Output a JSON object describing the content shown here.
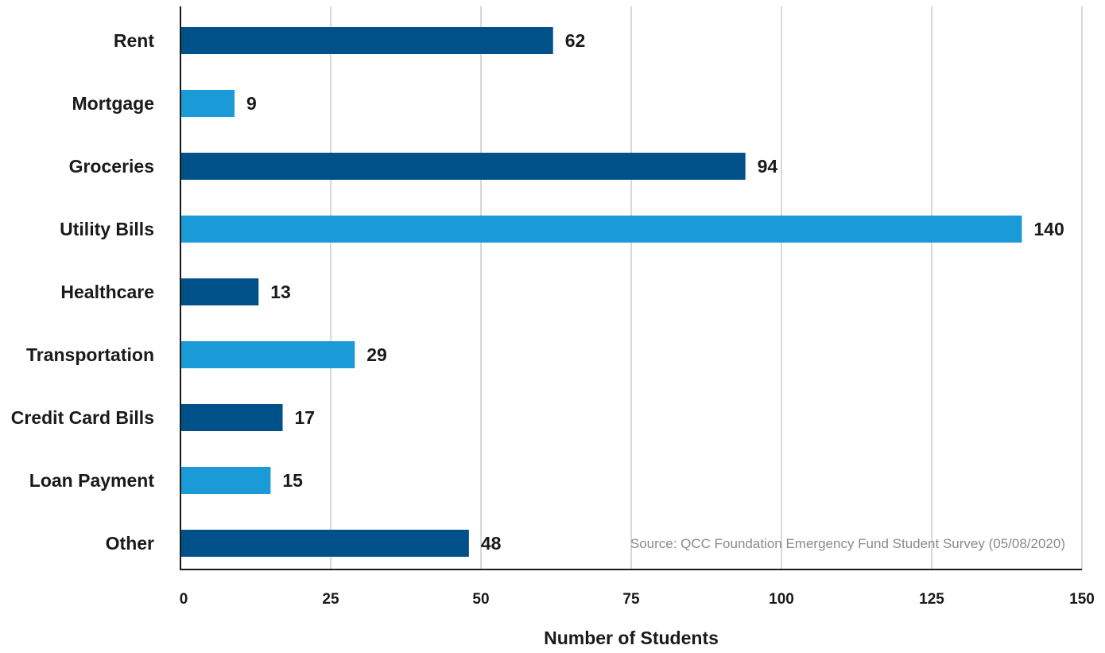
{
  "chart_data": {
    "type": "bar",
    "orientation": "horizontal",
    "categories": [
      "Rent",
      "Mortgage",
      "Groceries",
      "Utility Bills",
      "Healthcare",
      "Transportation",
      "Credit Card Bills",
      "Loan Payment",
      "Other"
    ],
    "values": [
      62,
      9,
      94,
      140,
      13,
      29,
      17,
      15,
      48
    ],
    "xlabel": "Number of Students",
    "ylabel": "",
    "xlim": [
      0,
      150
    ],
    "xticks": [
      0,
      25,
      50,
      75,
      100,
      125,
      150
    ],
    "grid": "vertical",
    "annotation": "Source: QCC Foundation Emergency Fund Student Survey (05/08/2020)",
    "bar_colors": [
      "#005189",
      "#1a9bd7"
    ]
  },
  "colors": {
    "dark_bar": "#005189",
    "light_bar": "#1a9bd7",
    "grid": "#bdbdbd",
    "axis": "#1a1a1a",
    "text": "#1a1a1a",
    "source_text": "#8a8a8a"
  }
}
